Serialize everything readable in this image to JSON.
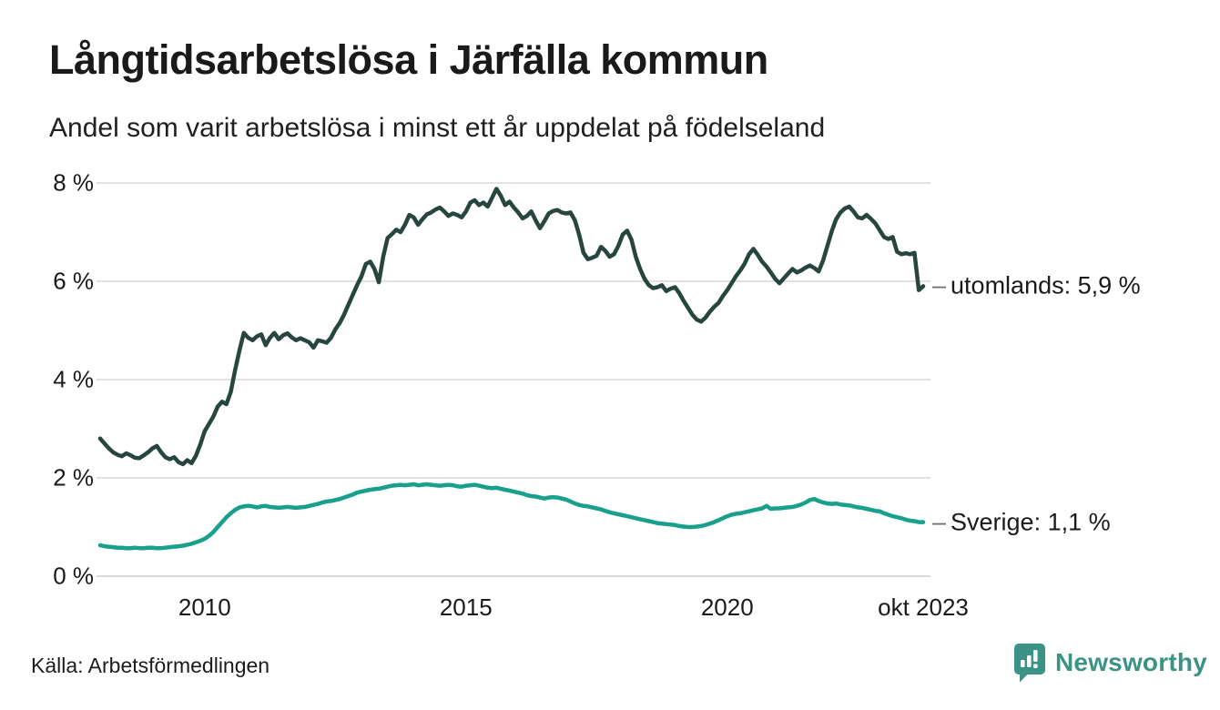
{
  "header": {
    "title": "Långtidsarbetslösa i Järfälla kommun",
    "subtitle": "Andel som varit arbetslösa i minst ett år uppdelat på födelseland"
  },
  "footer": {
    "source": "Källa: Arbetsförmedlingen",
    "brand_label": "Newsworthy"
  },
  "colors": {
    "text": "#1a1a1a",
    "grid": "#e2e2e2",
    "grid_zero": "#d9d9d9",
    "brand_teal": "#3c9285"
  },
  "chart_data": {
    "type": "line",
    "title": "Långtidsarbetslösa i Järfälla kommun",
    "subtitle": "Andel som varit arbetslösa i minst ett år uppdelat på födelseland",
    "x_unit": "month",
    "x_start": 2008.0,
    "x_end": 2023.75,
    "ylim": [
      0,
      8
    ],
    "grid": true,
    "legend_position": "right-end-labels",
    "y_ticks": [
      {
        "value": 0,
        "label": "0 %"
      },
      {
        "value": 2,
        "label": "2 %"
      },
      {
        "value": 4,
        "label": "4 %"
      },
      {
        "value": 6,
        "label": "6 %"
      },
      {
        "value": 8,
        "label": "8 %"
      }
    ],
    "x_ticks": [
      {
        "value": 2010.0,
        "label": "2010"
      },
      {
        "value": 2015.0,
        "label": "2015"
      },
      {
        "value": 2020.0,
        "label": "2020"
      },
      {
        "value": 2023.75,
        "label": "okt 2023"
      }
    ],
    "series": [
      {
        "name": "utomlands",
        "end_label": "utomlands: 5,9 %",
        "last_value_label": "5,9 %",
        "color": "#27463f",
        "values": [
          2.8,
          2.7,
          2.6,
          2.52,
          2.47,
          2.44,
          2.5,
          2.46,
          2.41,
          2.4,
          2.46,
          2.52,
          2.6,
          2.65,
          2.52,
          2.42,
          2.38,
          2.42,
          2.32,
          2.28,
          2.36,
          2.3,
          2.45,
          2.68,
          2.95,
          3.1,
          3.25,
          3.45,
          3.55,
          3.5,
          3.75,
          4.2,
          4.6,
          4.95,
          4.85,
          4.8,
          4.88,
          4.92,
          4.7,
          4.85,
          4.95,
          4.82,
          4.9,
          4.94,
          4.86,
          4.8,
          4.84,
          4.8,
          4.76,
          4.65,
          4.8,
          4.78,
          4.75,
          4.85,
          5.02,
          5.15,
          5.32,
          5.52,
          5.72,
          5.92,
          6.1,
          6.35,
          6.4,
          6.25,
          5.98,
          6.5,
          6.88,
          6.96,
          7.05,
          7.0,
          7.15,
          7.35,
          7.3,
          7.15,
          7.26,
          7.36,
          7.4,
          7.46,
          7.5,
          7.42,
          7.33,
          7.38,
          7.35,
          7.3,
          7.42,
          7.6,
          7.65,
          7.55,
          7.6,
          7.52,
          7.7,
          7.88,
          7.74,
          7.55,
          7.62,
          7.5,
          7.4,
          7.28,
          7.33,
          7.42,
          7.24,
          7.08,
          7.22,
          7.38,
          7.43,
          7.45,
          7.4,
          7.38,
          7.4,
          7.24,
          6.95,
          6.58,
          6.45,
          6.48,
          6.52,
          6.7,
          6.62,
          6.5,
          6.55,
          6.72,
          6.95,
          7.03,
          6.85,
          6.5,
          6.25,
          6.05,
          5.92,
          5.86,
          5.88,
          5.92,
          5.8,
          5.85,
          5.88,
          5.76,
          5.6,
          5.46,
          5.32,
          5.22,
          5.18,
          5.26,
          5.38,
          5.48,
          5.56,
          5.7,
          5.82,
          5.96,
          6.1,
          6.22,
          6.36,
          6.55,
          6.66,
          6.54,
          6.4,
          6.3,
          6.18,
          6.05,
          5.96,
          6.06,
          6.16,
          6.25,
          6.18,
          6.22,
          6.28,
          6.32,
          6.27,
          6.2,
          6.42,
          6.72,
          7.02,
          7.26,
          7.4,
          7.48,
          7.52,
          7.42,
          7.3,
          7.28,
          7.35,
          7.27,
          7.18,
          7.04,
          6.9,
          6.86,
          6.9,
          6.6,
          6.55,
          6.57,
          6.55,
          6.58,
          5.82,
          5.9
        ]
      },
      {
        "name": "Sverige",
        "end_label": "Sverige: 1,1 %",
        "last_value_label": "1,1 %",
        "color": "#18a08c",
        "values": [
          0.63,
          0.61,
          0.6,
          0.59,
          0.58,
          0.58,
          0.57,
          0.57,
          0.58,
          0.57,
          0.57,
          0.58,
          0.58,
          0.57,
          0.57,
          0.58,
          0.59,
          0.6,
          0.61,
          0.62,
          0.64,
          0.66,
          0.69,
          0.72,
          0.76,
          0.82,
          0.9,
          1.0,
          1.1,
          1.2,
          1.28,
          1.35,
          1.4,
          1.42,
          1.43,
          1.42,
          1.4,
          1.42,
          1.43,
          1.41,
          1.4,
          1.39,
          1.4,
          1.41,
          1.4,
          1.39,
          1.4,
          1.41,
          1.43,
          1.45,
          1.47,
          1.5,
          1.52,
          1.53,
          1.55,
          1.57,
          1.6,
          1.63,
          1.66,
          1.7,
          1.72,
          1.74,
          1.76,
          1.77,
          1.78,
          1.8,
          1.82,
          1.84,
          1.85,
          1.86,
          1.85,
          1.86,
          1.87,
          1.85,
          1.86,
          1.87,
          1.86,
          1.85,
          1.84,
          1.85,
          1.86,
          1.85,
          1.83,
          1.82,
          1.84,
          1.85,
          1.86,
          1.84,
          1.82,
          1.8,
          1.79,
          1.8,
          1.78,
          1.76,
          1.74,
          1.72,
          1.7,
          1.68,
          1.65,
          1.63,
          1.62,
          1.6,
          1.58,
          1.6,
          1.61,
          1.6,
          1.58,
          1.56,
          1.52,
          1.48,
          1.45,
          1.43,
          1.42,
          1.4,
          1.38,
          1.36,
          1.33,
          1.3,
          1.28,
          1.26,
          1.24,
          1.22,
          1.2,
          1.18,
          1.16,
          1.14,
          1.12,
          1.1,
          1.08,
          1.07,
          1.06,
          1.05,
          1.04,
          1.02,
          1.01,
          1.0,
          1.0,
          1.01,
          1.02,
          1.04,
          1.07,
          1.1,
          1.14,
          1.18,
          1.22,
          1.25,
          1.27,
          1.28,
          1.3,
          1.32,
          1.34,
          1.36,
          1.38,
          1.43,
          1.37,
          1.38,
          1.38,
          1.39,
          1.4,
          1.41,
          1.43,
          1.46,
          1.5,
          1.55,
          1.57,
          1.53,
          1.5,
          1.48,
          1.47,
          1.48,
          1.46,
          1.45,
          1.44,
          1.42,
          1.4,
          1.39,
          1.37,
          1.35,
          1.33,
          1.32,
          1.28,
          1.25,
          1.22,
          1.2,
          1.18,
          1.15,
          1.13,
          1.12,
          1.1,
          1.1
        ]
      }
    ]
  }
}
